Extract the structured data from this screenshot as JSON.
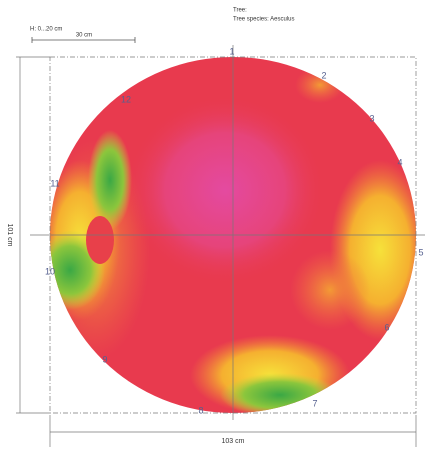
{
  "header": {
    "tree": "Tree:",
    "species": "Tree species: Aesculus"
  },
  "scale": {
    "height": "H: 0...20 cm",
    "bar": "30 cm"
  },
  "dimensions": {
    "height": "101 cm",
    "width": "103 cm"
  },
  "sensors": [
    "1",
    "2",
    "3",
    "4",
    "5",
    "6",
    "7",
    "8",
    "9",
    "10",
    "11",
    "12"
  ]
}
